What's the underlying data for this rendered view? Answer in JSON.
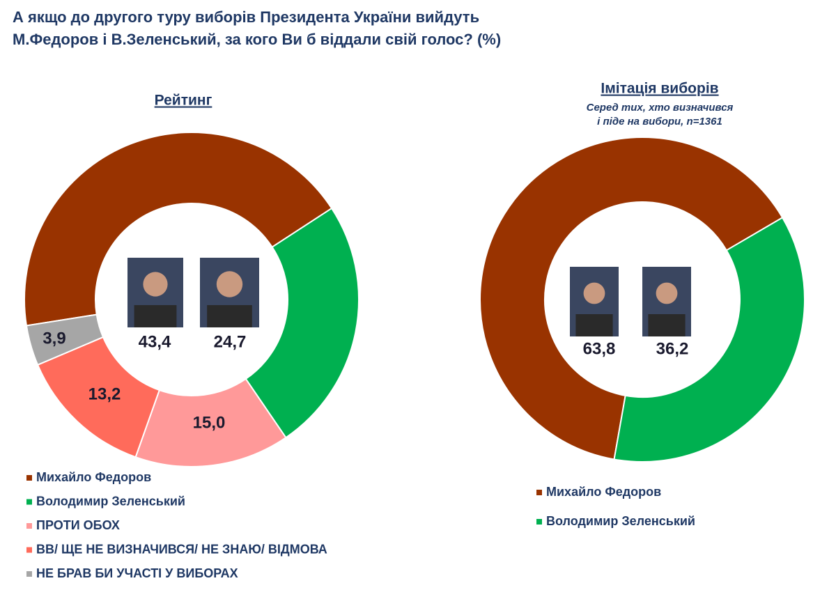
{
  "title": [
    "А якщо до другого туру виборів Президента України вийдуть",
    "М.Федоров і В.Зеленський, за кого Ви б віддали свій голос? (%)"
  ],
  "chart_data": [
    {
      "type": "pie",
      "title": "Рейтинг",
      "categories": [
        "Михайло Федоров",
        "Володимир Зеленський",
        "ПРОТИ ОБОХ",
        "ВВ/ ЩЕ НЕ ВИЗНАЧИВСЯ/ НЕ ЗНАЮ/ ВІДМОВА",
        "НЕ БРАВ БИ УЧАСТІ У ВИБОРАХ"
      ],
      "values": [
        43.4,
        24.7,
        15.0,
        13.2,
        3.9
      ],
      "value_labels": [
        "43,4",
        "24,7",
        "15,0",
        "13,2",
        "3,9"
      ],
      "colors": [
        "#993300",
        "#00b050",
        "#ff9999",
        "#ff6b5b",
        "#a6a6a6"
      ]
    },
    {
      "type": "pie",
      "title": "Імітація виборів",
      "subtitle": [
        "Серед тих, хто визначився",
        "і піде на вибори, n=1361"
      ],
      "categories": [
        "Михайло Федоров",
        "Володимир Зеленський"
      ],
      "values": [
        63.8,
        36.2
      ],
      "value_labels": [
        "63,8",
        "36,2"
      ],
      "colors": [
        "#993300",
        "#00b050"
      ]
    }
  ]
}
